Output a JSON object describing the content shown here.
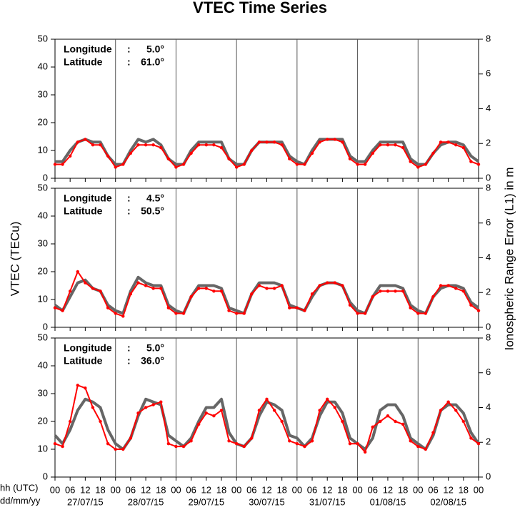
{
  "figure": {
    "title": "VTEC Time Series",
    "ylabel": "VTEC (TECu)",
    "y2label": "Ionospheric Range Error (L1) in m",
    "xlabel_rows": [
      "hh (UTC)",
      "dd/mm/yy"
    ],
    "xlim": [
      0,
      168
    ],
    "x": [
      0,
      3,
      6,
      9,
      12,
      15,
      18,
      21,
      24,
      27,
      30,
      33,
      36,
      39,
      42,
      45,
      48,
      51,
      54,
      57,
      60,
      63,
      66,
      69,
      72,
      75,
      78,
      81,
      84,
      87,
      90,
      93,
      96,
      99,
      102,
      105,
      108,
      111,
      114,
      117,
      120,
      123,
      126,
      129,
      132,
      135,
      138,
      141,
      144,
      147,
      150,
      153,
      156,
      159,
      162,
      165,
      168
    ],
    "xticks": [
      {
        "value": 0,
        "label": "00"
      },
      {
        "value": 6,
        "label": "06"
      },
      12,
      18,
      {
        "value": 24,
        "label": "00"
      },
      {
        "value": 30,
        "label": "06"
      },
      {
        "value": 36,
        "label": "12"
      },
      {
        "value": 42,
        "label": "18"
      },
      {
        "value": 48,
        "label": "00"
      },
      {
        "value": 54,
        "label": "06"
      },
      {
        "value": 60,
        "label": "12"
      },
      {
        "value": 66,
        "label": "18"
      },
      {
        "value": 72,
        "label": "00"
      },
      {
        "value": 78,
        "label": "06"
      },
      {
        "value": 84,
        "label": "12"
      },
      {
        "value": 90,
        "label": "18"
      },
      {
        "value": 96,
        "label": "00"
      },
      {
        "value": 102,
        "label": "06"
      },
      {
        "value": 108,
        "label": "12"
      },
      {
        "value": 114,
        "label": "18"
      },
      {
        "value": 120,
        "label": "00"
      },
      {
        "value": 126,
        "label": "06"
      },
      {
        "value": 132,
        "label": "12"
      },
      {
        "value": 138,
        "label": "18"
      },
      {
        "value": 144,
        "label": "00"
      },
      {
        "value": 150,
        "label": "06"
      },
      {
        "value": 156,
        "label": "12"
      },
      {
        "value": 162,
        "label": "18"
      },
      {
        "value": 168,
        "label": "00"
      }
    ],
    "date_ticks": [
      {
        "value": 12,
        "label": "27/07/15"
      },
      {
        "value": 36,
        "label": "28/07/15"
      },
      {
        "value": 60,
        "label": "29/07/15"
      },
      {
        "value": 84,
        "label": "30/07/15"
      },
      {
        "value": 108,
        "label": "31/07/15"
      },
      {
        "value": 132,
        "label": "01/08/15"
      },
      {
        "value": 156,
        "label": "02/08/15"
      }
    ],
    "day_lines": true
  },
  "chart_data": [
    {
      "type": "line",
      "annotations": [
        [
          "Longitude",
          ":",
          "5.0°"
        ],
        [
          "Latitude",
          ":",
          "61.0°"
        ]
      ],
      "ylim": [
        0,
        50
      ],
      "yticks": [
        0,
        10,
        20,
        30,
        40,
        50
      ],
      "y2lim": [
        0,
        8
      ],
      "y2ticks": [
        0,
        2,
        4,
        6,
        8
      ],
      "series": [
        {
          "color": "#666666",
          "values": [
            6,
            6,
            10,
            13,
            14,
            13,
            13,
            8,
            5,
            5,
            10,
            14,
            13,
            14,
            12,
            7,
            5,
            5,
            10,
            13,
            13,
            13,
            13,
            7,
            5,
            5,
            10,
            13,
            13,
            13,
            13,
            8,
            6,
            5,
            10,
            14,
            14,
            14,
            14,
            8,
            6,
            6,
            10,
            13,
            13,
            13,
            13,
            7,
            5,
            5,
            9,
            12,
            13,
            13,
            12,
            8,
            6
          ]
        },
        {
          "color": "#ff0000",
          "values": [
            5,
            5,
            8,
            13,
            14,
            12,
            12,
            8,
            4,
            5,
            9,
            12,
            12,
            12,
            11,
            7,
            4,
            5,
            9,
            12,
            12,
            12,
            11,
            7,
            4,
            5,
            10,
            13,
            13,
            13,
            12,
            7,
            5,
            5,
            9,
            13,
            14,
            14,
            13,
            7,
            5,
            5,
            9,
            12,
            12,
            12,
            11,
            6,
            4,
            5,
            9,
            13,
            13,
            12,
            11,
            6,
            5
          ]
        }
      ]
    },
    {
      "type": "line",
      "annotations": [
        [
          "Longitude",
          ":",
          "4.5°"
        ],
        [
          "Latitude",
          ":",
          "50.5°"
        ]
      ],
      "ylim": [
        0,
        50
      ],
      "yticks": [
        0,
        10,
        20,
        30,
        40,
        50
      ],
      "y2lim": [
        0,
        8
      ],
      "y2ticks": [
        0,
        2,
        4,
        6,
        8
      ],
      "series": [
        {
          "color": "#666666",
          "values": [
            8,
            6,
            11,
            16,
            17,
            14,
            13,
            8,
            6,
            5,
            13,
            18,
            16,
            15,
            15,
            8,
            6,
            5,
            11,
            15,
            15,
            15,
            14,
            7,
            6,
            5,
            12,
            16,
            16,
            16,
            15,
            8,
            7,
            6,
            11,
            15,
            16,
            16,
            15,
            9,
            6,
            5,
            11,
            15,
            15,
            15,
            14,
            8,
            6,
            5,
            11,
            14,
            15,
            15,
            14,
            9,
            7
          ]
        },
        {
          "color": "#ff0000",
          "values": [
            7,
            6,
            13,
            20,
            16,
            14,
            13,
            7,
            5,
            4,
            12,
            16,
            15,
            14,
            14,
            7,
            5,
            5,
            11,
            14,
            14,
            13,
            13,
            6,
            5,
            5,
            12,
            15,
            14,
            14,
            15,
            7,
            7,
            6,
            12,
            15,
            16,
            16,
            15,
            8,
            5,
            5,
            11,
            13,
            13,
            13,
            13,
            7,
            5,
            5,
            11,
            15,
            15,
            14,
            13,
            8,
            6
          ]
        }
      ]
    },
    {
      "type": "line",
      "annotations": [
        [
          "Longitude",
          ":",
          "5.0°"
        ],
        [
          "Latitude",
          ":",
          "36.0°"
        ]
      ],
      "ylim": [
        0,
        50
      ],
      "yticks": [
        0,
        10,
        20,
        30,
        40,
        50
      ],
      "y2lim": [
        0,
        8
      ],
      "y2ticks": [
        0,
        2,
        4,
        6,
        8
      ],
      "series": [
        {
          "color": "#666666",
          "values": [
            15,
            12,
            17,
            24,
            28,
            27,
            25,
            17,
            12,
            10,
            14,
            22,
            28,
            27,
            26,
            15,
            13,
            11,
            14,
            20,
            25,
            25,
            28,
            16,
            12,
            11,
            14,
            22,
            27,
            26,
            24,
            15,
            14,
            11,
            14,
            22,
            27,
            27,
            23,
            14,
            12,
            10,
            14,
            24,
            26,
            26,
            22,
            14,
            12,
            10,
            15,
            24,
            26,
            26,
            23,
            16,
            12
          ]
        },
        {
          "color": "#ff0000",
          "values": [
            12,
            11,
            20,
            33,
            32,
            25,
            20,
            12,
            10,
            10,
            14,
            23,
            25,
            26,
            27,
            12,
            11,
            11,
            13,
            19,
            23,
            22,
            24,
            13,
            12,
            11,
            14,
            24,
            28,
            24,
            20,
            13,
            12,
            11,
            13,
            24,
            28,
            25,
            20,
            12,
            12,
            9,
            18,
            20,
            22,
            20,
            19,
            13,
            11,
            10,
            16,
            24,
            27,
            24,
            20,
            14,
            12
          ]
        }
      ]
    }
  ]
}
